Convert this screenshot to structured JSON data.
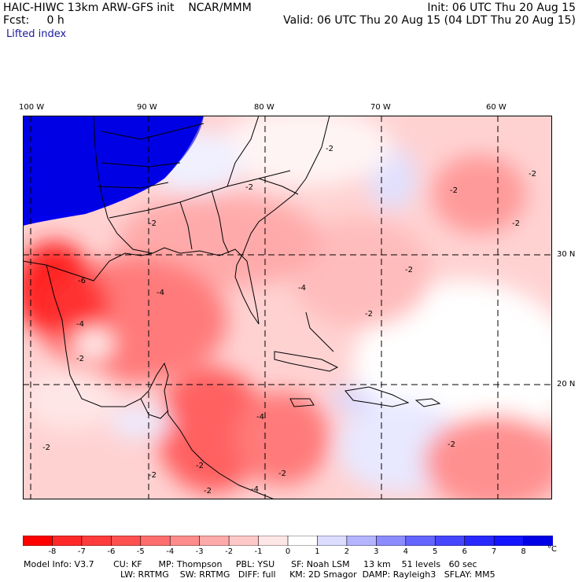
{
  "header": {
    "model": "HAIC-HIWC 13km ARW-GFS init",
    "org": "NCAR/MMM",
    "fcst_label": "Fcst:",
    "fcst_value": "0 h",
    "init": "Init: 06 UTC Thu 20 Aug 15",
    "valid": "Valid: 06 UTC Thu 20 Aug 15 (04 LDT Thu 20 Aug 15)",
    "field": "Lifted index"
  },
  "longitudes": [
    "100 W",
    "90 W",
    "80 W",
    "70 W",
    "60 W"
  ],
  "latitudes": [
    "30 N",
    "20 N"
  ],
  "contour_labels": [
    "-2",
    "-2",
    "-2",
    "-2",
    "-2",
    "-2",
    "-2",
    "-2",
    "-2",
    "-4",
    "-4",
    "-4",
    "-6",
    "-2",
    "-2",
    "-4",
    "-2",
    "-2",
    "-4",
    "-2",
    "-2"
  ],
  "colorbar": {
    "labels": [
      "-8",
      "-7",
      "-6",
      "-5",
      "-4",
      "-3",
      "-2",
      "-1",
      "0",
      "1",
      "2",
      "3",
      "4",
      "5",
      "6",
      "7",
      "8"
    ],
    "unit": "°C",
    "colors": [
      "#ff0000",
      "#ff2828",
      "#ff3c3c",
      "#ff5050",
      "#ff6e6e",
      "#ff8c8c",
      "#ffaaaa",
      "#ffc8c8",
      "#ffe6e6",
      "#ffffff",
      "#dcdcff",
      "#b4b4ff",
      "#8c8cff",
      "#6464ff",
      "#4646ff",
      "#2828ff",
      "#1414ff",
      "#0000e6"
    ]
  },
  "model_info": {
    "line1": [
      "Model Info: V3.7",
      "CU: KF",
      "MP: Thompson",
      "PBL: YSU",
      "SF: Noah LSM",
      "13 km",
      "51 levels",
      "60 sec"
    ],
    "line2": [
      "LW: RRTMG",
      "SW: RRTMG",
      "DIFF: full",
      "KM: 2D Smagor",
      "DAMP: Rayleigh3",
      "SFLAY: MM5"
    ]
  }
}
